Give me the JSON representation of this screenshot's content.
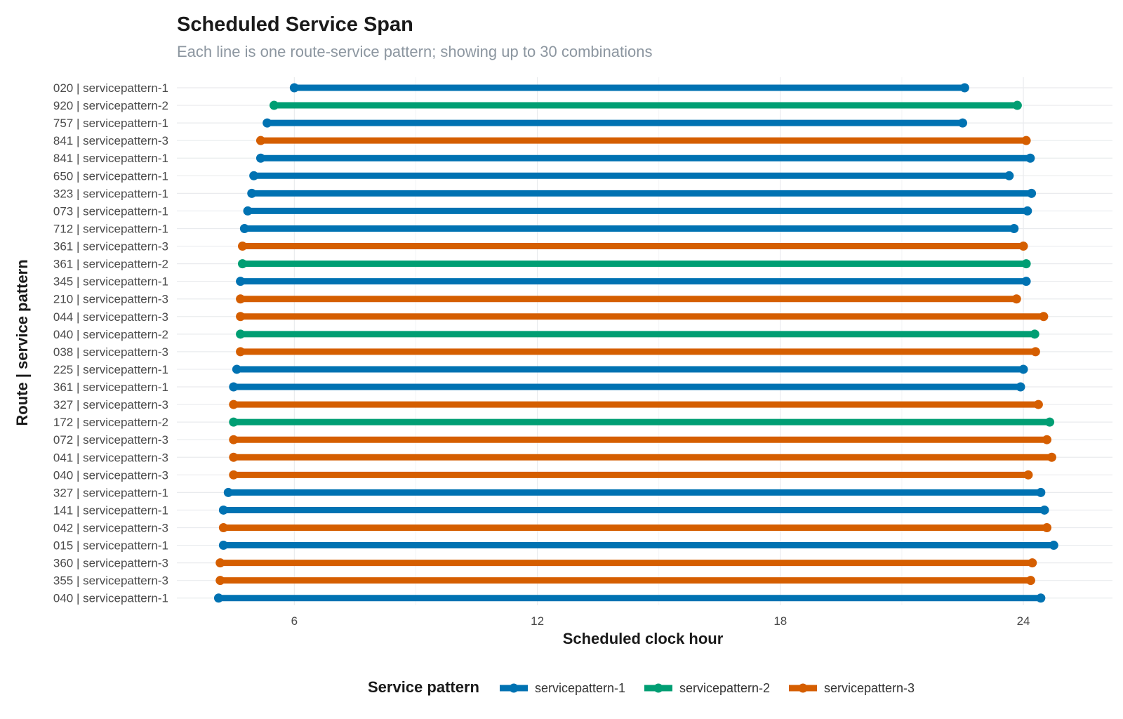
{
  "chart_data": {
    "type": "dumbbell",
    "title": "Scheduled Service Span",
    "subtitle": "Each line is one route-service pattern; showing up to 30 combinations",
    "xlabel": "Scheduled clock hour",
    "ylabel": "Route | service pattern",
    "xlim": [
      3.1,
      26.2
    ],
    "xticks": [
      6,
      12,
      18,
      24
    ],
    "grid": true,
    "legend": {
      "title": "Service pattern",
      "position": "bottom",
      "items": [
        {
          "name": "servicepattern-1",
          "color": "#0072B2"
        },
        {
          "name": "servicepattern-2",
          "color": "#009E73"
        },
        {
          "name": "servicepattern-3",
          "color": "#D55E00"
        }
      ]
    },
    "rows": [
      {
        "label": "020 | servicepattern-1",
        "pattern": "servicepattern-1",
        "start": 6.0,
        "end": 22.55
      },
      {
        "label": "920 | servicepattern-2",
        "pattern": "servicepattern-2",
        "start": 5.5,
        "end": 23.85
      },
      {
        "label": "757 | servicepattern-1",
        "pattern": "servicepattern-1",
        "start": 5.33,
        "end": 22.5
      },
      {
        "label": "841 | servicepattern-3",
        "pattern": "servicepattern-3",
        "start": 5.17,
        "end": 24.07
      },
      {
        "label": "841 | servicepattern-1",
        "pattern": "servicepattern-1",
        "start": 5.17,
        "end": 24.17
      },
      {
        "label": "650 | servicepattern-1",
        "pattern": "servicepattern-1",
        "start": 5.0,
        "end": 23.65
      },
      {
        "label": "323 | servicepattern-1",
        "pattern": "servicepattern-1",
        "start": 4.95,
        "end": 24.2
      },
      {
        "label": "073 | servicepattern-1",
        "pattern": "servicepattern-1",
        "start": 4.85,
        "end": 24.1
      },
      {
        "label": "712 | servicepattern-1",
        "pattern": "servicepattern-1",
        "start": 4.77,
        "end": 23.77
      },
      {
        "label": "361 | servicepattern-3",
        "pattern": "servicepattern-3",
        "start": 4.72,
        "end": 24.0
      },
      {
        "label": "361 | servicepattern-2",
        "pattern": "servicepattern-2",
        "start": 4.72,
        "end": 24.07
      },
      {
        "label": "345 | servicepattern-1",
        "pattern": "servicepattern-1",
        "start": 4.67,
        "end": 24.07
      },
      {
        "label": "210 | servicepattern-3",
        "pattern": "servicepattern-3",
        "start": 4.67,
        "end": 23.83
      },
      {
        "label": "044 | servicepattern-3",
        "pattern": "servicepattern-3",
        "start": 4.67,
        "end": 24.5
      },
      {
        "label": "040 | servicepattern-2",
        "pattern": "servicepattern-2",
        "start": 4.67,
        "end": 24.28
      },
      {
        "label": "038 | servicepattern-3",
        "pattern": "servicepattern-3",
        "start": 4.67,
        "end": 24.3
      },
      {
        "label": "225 | servicepattern-1",
        "pattern": "servicepattern-1",
        "start": 4.58,
        "end": 24.0
      },
      {
        "label": "361 | servicepattern-1",
        "pattern": "servicepattern-1",
        "start": 4.5,
        "end": 23.93
      },
      {
        "label": "327 | servicepattern-3",
        "pattern": "servicepattern-3",
        "start": 4.5,
        "end": 24.37
      },
      {
        "label": "172 | servicepattern-2",
        "pattern": "servicepattern-2",
        "start": 4.5,
        "end": 24.65
      },
      {
        "label": "072 | servicepattern-3",
        "pattern": "servicepattern-3",
        "start": 4.5,
        "end": 24.58
      },
      {
        "label": "041 | servicepattern-3",
        "pattern": "servicepattern-3",
        "start": 4.5,
        "end": 24.7
      },
      {
        "label": "040 | servicepattern-3",
        "pattern": "servicepattern-3",
        "start": 4.5,
        "end": 24.12
      },
      {
        "label": "327 | servicepattern-1",
        "pattern": "servicepattern-1",
        "start": 4.37,
        "end": 24.43
      },
      {
        "label": "141 | servicepattern-1",
        "pattern": "servicepattern-1",
        "start": 4.25,
        "end": 24.52
      },
      {
        "label": "042 | servicepattern-3",
        "pattern": "servicepattern-3",
        "start": 4.25,
        "end": 24.58
      },
      {
        "label": "015 | servicepattern-1",
        "pattern": "servicepattern-1",
        "start": 4.25,
        "end": 24.75
      },
      {
        "label": "360 | servicepattern-3",
        "pattern": "servicepattern-3",
        "start": 4.17,
        "end": 24.22
      },
      {
        "label": "355 | servicepattern-3",
        "pattern": "servicepattern-3",
        "start": 4.17,
        "end": 24.18
      },
      {
        "label": "040 | servicepattern-1",
        "pattern": "servicepattern-1",
        "start": 4.13,
        "end": 24.43
      }
    ]
  }
}
